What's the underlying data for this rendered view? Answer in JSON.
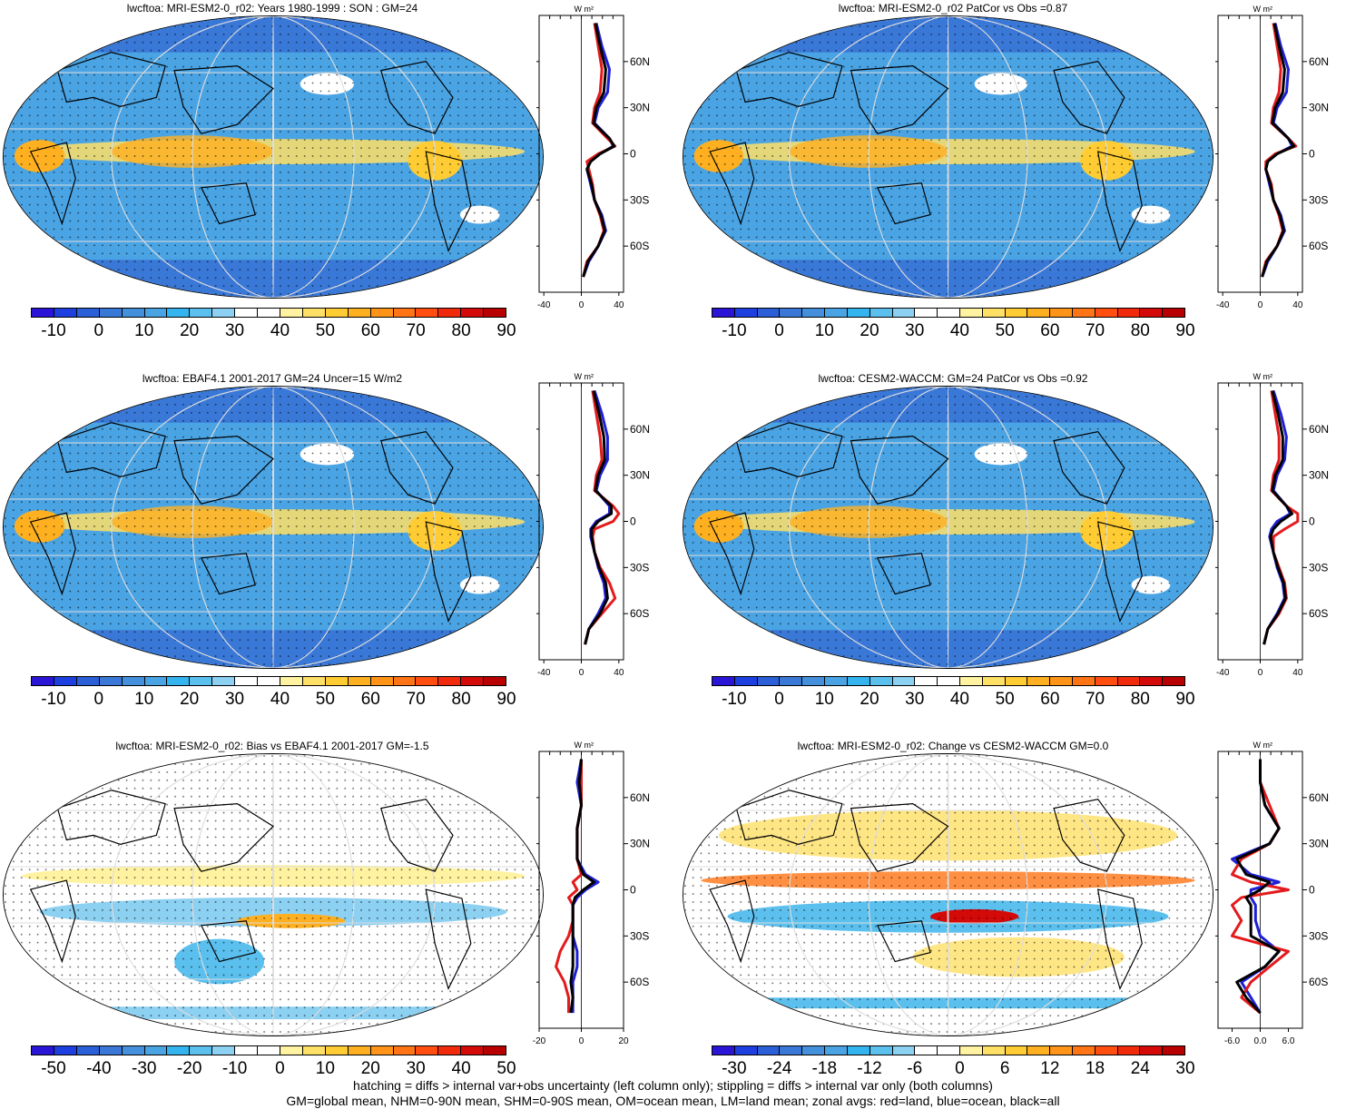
{
  "panels": [
    {
      "title": "lwcftoa: MRI-ESM2-0_r02: Years 1980-1999 : SON : GM=24",
      "colorbar": "abs",
      "zonal_ticks": [
        "-40",
        "0",
        "40"
      ],
      "zonal_range": [
        -45,
        45
      ]
    },
    {
      "title": "lwcftoa: MRI-ESM2-0_r02 PatCor vs Obs =0.87",
      "colorbar": "abs",
      "zonal_ticks": [
        "-40",
        "0",
        "40"
      ],
      "zonal_range": [
        -45,
        45
      ]
    },
    {
      "title": "lwcftoa: EBAF4.1 2001-2017 GM=24 Uncer=15 W/m2",
      "colorbar": "abs",
      "zonal_ticks": [
        "-40",
        "0",
        "40"
      ],
      "zonal_range": [
        -45,
        45
      ]
    },
    {
      "title": "lwcftoa: CESM2-WACCM: GM=24 PatCor vs Obs =0.92",
      "colorbar": "abs",
      "zonal_ticks": [
        "-40",
        "0",
        "40"
      ],
      "zonal_range": [
        -45,
        45
      ]
    },
    {
      "title": "lwcftoa: MRI-ESM2-0_r02: Bias vs EBAF4.1 2001-2017  GM=-1.5",
      "colorbar": "bias",
      "zonal_ticks": [
        "-20",
        "0",
        "20"
      ],
      "zonal_range": [
        -20,
        20
      ]
    },
    {
      "title": "lwcftoa: MRI-ESM2-0_r02: Change vs CESM2-WACCM GM=0.0",
      "colorbar": "change",
      "zonal_ticks": [
        "-6.0",
        "0.0",
        "6.0"
      ],
      "zonal_range": [
        -9,
        9
      ]
    }
  ],
  "zonal_units": "W m²",
  "lat_ticks": [
    "60N",
    "30N",
    "0",
    "30S",
    "60S"
  ],
  "colorbars": {
    "abs": {
      "labels": [
        "-10",
        "0",
        "10",
        "20",
        "30",
        "40",
        "50",
        "60",
        "70",
        "80",
        "90"
      ]
    },
    "bias": {
      "labels": [
        "-50",
        "-40",
        "-30",
        "-20",
        "-10",
        "0",
        "10",
        "20",
        "30",
        "40",
        "50"
      ]
    },
    "change": {
      "labels": [
        "-30",
        "-24",
        "-18",
        "-12",
        "-6",
        "0",
        "6",
        "12",
        "18",
        "24",
        "30"
      ]
    }
  },
  "colorbar_colors": [
    "#2a14d6",
    "#1e3fe0",
    "#2a5fd8",
    "#3a78d8",
    "#4590dc",
    "#4aa4e4",
    "#34b4ee",
    "#5cc0ee",
    "#8cd0f2",
    "#ffffff",
    "#ffffff",
    "#fff2a0",
    "#ffe066",
    "#ffcc33",
    "#ffb020",
    "#ff9418",
    "#ff7414",
    "#ff4e10",
    "#f22a0c",
    "#d40a08",
    "#b80000"
  ],
  "line_colors": {
    "land": "#e41a1c",
    "ocean": "#1f1fd6",
    "all": "#000000"
  },
  "chart_data": [
    {
      "type": "heatmap",
      "title": "lwcftoa: MRI-ESM2-0_r02: Years 1980-1999 : SON : GM=24",
      "zonal_lat": [
        85,
        70,
        55,
        40,
        30,
        20,
        10,
        5,
        0,
        -5,
        -10,
        -20,
        -30,
        -40,
        -50,
        -60,
        -70,
        -80
      ],
      "zonal": {
        "land": [
          14,
          18,
          22,
          20,
          14,
          12,
          28,
          36,
          18,
          6,
          8,
          12,
          14,
          20,
          24,
          18,
          6,
          2
        ],
        "ocean": [
          16,
          22,
          30,
          28,
          18,
          14,
          30,
          34,
          20,
          10,
          6,
          10,
          14,
          22,
          26,
          18,
          8,
          2
        ],
        "all": [
          15,
          20,
          26,
          24,
          16,
          13,
          30,
          35,
          20,
          10,
          6,
          11,
          14,
          21,
          25,
          18,
          7,
          2
        ]
      },
      "zonal_xlim": [
        -45,
        45
      ]
    },
    {
      "type": "heatmap",
      "title": "lwcftoa: MRI-ESM2-0_r02 PatCor vs Obs =0.87",
      "zonal_lat": [
        85,
        70,
        55,
        40,
        30,
        20,
        10,
        5,
        0,
        -5,
        -10,
        -20,
        -30,
        -40,
        -50,
        -60,
        -70,
        -80
      ],
      "zonal": {
        "land": [
          14,
          18,
          22,
          20,
          14,
          12,
          30,
          38,
          16,
          6,
          6,
          12,
          14,
          20,
          24,
          18,
          6,
          2
        ],
        "ocean": [
          16,
          22,
          30,
          28,
          18,
          14,
          30,
          34,
          18,
          8,
          6,
          10,
          14,
          22,
          26,
          18,
          8,
          2
        ],
        "all": [
          15,
          20,
          26,
          24,
          16,
          13,
          30,
          36,
          18,
          8,
          6,
          11,
          14,
          21,
          25,
          18,
          7,
          2
        ]
      },
      "zonal_xlim": [
        -45,
        45
      ]
    },
    {
      "type": "heatmap",
      "title": "lwcftoa: EBAF4.1 2001-2017 GM=24 Uncer=15 W/m2",
      "zonal_lat": [
        85,
        70,
        55,
        40,
        30,
        20,
        10,
        5,
        0,
        -5,
        -10,
        -20,
        -30,
        -40,
        -50,
        -60,
        -70,
        -80
      ],
      "zonal": {
        "land": [
          12,
          16,
          20,
          22,
          16,
          14,
          34,
          40,
          34,
          14,
          12,
          14,
          20,
          30,
          36,
          22,
          8,
          4
        ],
        "ocean": [
          14,
          22,
          28,
          28,
          20,
          16,
          30,
          30,
          16,
          10,
          10,
          14,
          18,
          24,
          26,
          18,
          8,
          4
        ],
        "all": [
          13,
          19,
          24,
          25,
          18,
          15,
          32,
          32,
          18,
          11,
          11,
          14,
          19,
          26,
          28,
          20,
          8,
          4
        ]
      },
      "zonal_xlim": [
        -45,
        45
      ]
    },
    {
      "type": "heatmap",
      "title": "lwcftoa: CESM2-WACCM: GM=24 PatCor vs Obs =0.92",
      "zonal_lat": [
        85,
        70,
        55,
        40,
        30,
        20,
        10,
        5,
        0,
        -5,
        -10,
        -20,
        -30,
        -40,
        -50,
        -60,
        -70,
        -80
      ],
      "zonal": {
        "land": [
          12,
          16,
          20,
          20,
          14,
          12,
          28,
          40,
          40,
          26,
          14,
          14,
          20,
          26,
          28,
          20,
          8,
          4
        ],
        "ocean": [
          14,
          22,
          28,
          26,
          18,
          14,
          28,
          32,
          18,
          12,
          10,
          14,
          18,
          24,
          26,
          18,
          8,
          4
        ],
        "all": [
          13,
          19,
          24,
          24,
          16,
          13,
          28,
          34,
          22,
          14,
          11,
          14,
          19,
          25,
          27,
          19,
          8,
          4
        ]
      },
      "zonal_xlim": [
        -45,
        45
      ]
    },
    {
      "type": "heatmap",
      "title": "lwcftoa: MRI-ESM2-0_r02: Bias vs EBAF4.1 2001-2017  GM=-1.5",
      "zonal_lat": [
        85,
        70,
        55,
        40,
        30,
        20,
        10,
        5,
        0,
        -5,
        -10,
        -20,
        -30,
        -40,
        -50,
        -60,
        -70,
        -80
      ],
      "zonal": {
        "land": [
          0,
          0,
          0,
          -2,
          -2,
          -2,
          0,
          -4,
          -2,
          -6,
          -4,
          -4,
          -6,
          -10,
          -12,
          -8,
          -6,
          -6
        ],
        "ocean": [
          0,
          -2,
          0,
          -2,
          -2,
          -2,
          2,
          8,
          2,
          -2,
          -4,
          -4,
          -4,
          -2,
          -2,
          -4,
          -4,
          -4
        ],
        "all": [
          0,
          -1,
          0,
          -2,
          -2,
          -2,
          1,
          6,
          1,
          -3,
          -4,
          -4,
          -4,
          -4,
          -4,
          -5,
          -4,
          -5
        ]
      },
      "zonal_xlim": [
        -20,
        20
      ]
    },
    {
      "type": "heatmap",
      "title": "lwcftoa: MRI-ESM2-0_r02: Change vs CESM2-WACCM GM=0.0",
      "zonal_lat": [
        85,
        70,
        55,
        40,
        30,
        20,
        10,
        5,
        0,
        -5,
        -10,
        -20,
        -30,
        -40,
        -50,
        -60,
        -70,
        -80
      ],
      "zonal": {
        "land": [
          0,
          0,
          2,
          4,
          2,
          -4,
          -6,
          -2,
          6,
          -4,
          -6,
          -4,
          -6,
          6,
          2,
          -2,
          -4,
          0
        ],
        "ocean": [
          0,
          0,
          1,
          4,
          2,
          -6,
          -2,
          4,
          -2,
          -2,
          -1,
          -1,
          0,
          4,
          1,
          -4,
          -2,
          0
        ],
        "all": [
          0,
          0,
          1,
          4,
          2,
          -5,
          -3,
          2,
          0,
          -3,
          -2,
          -2,
          -2,
          4,
          1,
          -5,
          -3,
          0
        ]
      },
      "zonal_xlim": [
        -9,
        9
      ]
    }
  ],
  "footer": {
    "line1": "hatching = diffs > internal var+obs uncertainty (left column only); stippling = diffs > internal var only (both columns)",
    "line2": "GM=global mean, NHM=0-90N mean, SHM=0-90S mean, OM=ocean mean, LM=land mean; zonal avgs: red=land, blue=ocean, black=all"
  }
}
